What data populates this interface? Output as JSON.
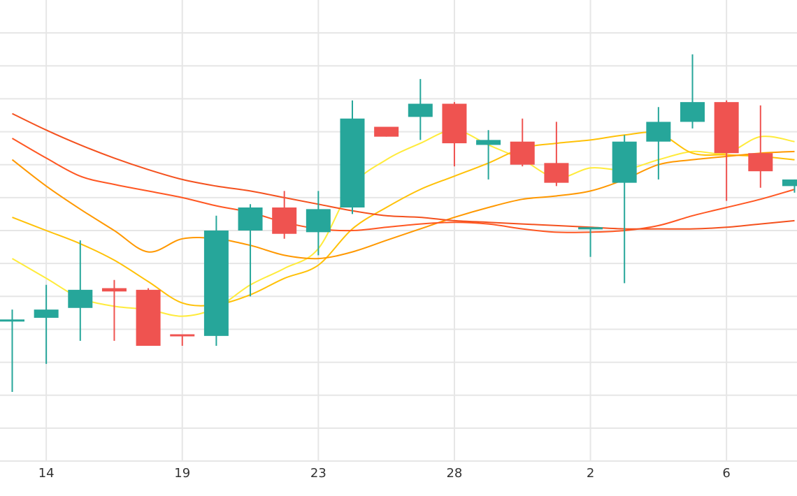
{
  "chart_data": {
    "type": "candlestick",
    "title": "",
    "xlabel": "",
    "ylabel": "",
    "x_tick_labels": [
      "14",
      "19",
      "23",
      "28",
      "2",
      "6"
    ],
    "ylim": [
      0,
      14
    ],
    "y_grid_values": [
      1,
      2,
      3,
      4,
      5,
      6,
      7,
      8,
      9,
      10,
      11,
      12,
      13
    ],
    "grid": true,
    "colors": {
      "up": "#26a69a",
      "down": "#ef5350"
    },
    "candles": [
      {
        "open": 4.3,
        "high": 4.6,
        "low": 2.1,
        "close": 4.3
      },
      {
        "open": 4.35,
        "high": 5.35,
        "low": 2.95,
        "close": 4.6
      },
      {
        "open": 4.65,
        "high": 6.7,
        "low": 3.65,
        "close": 5.2
      },
      {
        "open": 5.25,
        "high": 5.5,
        "low": 3.65,
        "close": 5.15
      },
      {
        "open": 5.2,
        "high": 5.25,
        "low": 3.5,
        "close": 3.5
      },
      {
        "open": 3.85,
        "high": 3.85,
        "low": 3.5,
        "close": 3.8
      },
      {
        "open": 3.8,
        "high": 7.45,
        "low": 3.5,
        "close": 7.0
      },
      {
        "open": 7.0,
        "high": 7.8,
        "low": 5.0,
        "close": 7.7
      },
      {
        "open": 7.7,
        "high": 8.2,
        "low": 6.75,
        "close": 6.9
      },
      {
        "open": 6.95,
        "high": 8.2,
        "low": 6.25,
        "close": 7.65
      },
      {
        "open": 7.7,
        "high": 10.95,
        "low": 7.5,
        "close": 10.4
      },
      {
        "open": 10.15,
        "high": 10.15,
        "low": 9.85,
        "close": 9.85
      },
      {
        "open": 10.45,
        "high": 11.6,
        "low": 9.75,
        "close": 10.85
      },
      {
        "open": 10.85,
        "high": 10.9,
        "low": 8.95,
        "close": 9.65
      },
      {
        "open": 9.6,
        "high": 10.05,
        "low": 8.55,
        "close": 9.75
      },
      {
        "open": 9.7,
        "high": 10.4,
        "low": 8.95,
        "close": 9.0
      },
      {
        "open": 9.05,
        "high": 10.3,
        "low": 8.35,
        "close": 8.45
      },
      {
        "open": 7.1,
        "high": 7.1,
        "low": 6.2,
        "close": 7.1
      },
      {
        "open": 8.45,
        "high": 9.9,
        "low": 5.4,
        "close": 9.7
      },
      {
        "open": 9.7,
        "high": 10.75,
        "low": 8.55,
        "close": 10.3
      },
      {
        "open": 10.3,
        "high": 12.35,
        "low": 10.1,
        "close": 10.9
      },
      {
        "open": 10.9,
        "high": 10.95,
        "low": 7.9,
        "close": 9.35
      },
      {
        "open": 9.35,
        "high": 10.8,
        "low": 8.3,
        "close": 8.8
      },
      {
        "open": 8.35,
        "high": 8.55,
        "low": 8.15,
        "close": 8.55
      }
    ],
    "series": [
      {
        "color": "#ffeb3b",
        "values": [
          6.15,
          5.55,
          4.95,
          4.7,
          4.6,
          4.4,
          4.65,
          5.35,
          5.85,
          6.45,
          8.35,
          9.15,
          9.65,
          10.05,
          9.6,
          9.15,
          8.6,
          8.9,
          8.85,
          9.15,
          9.4,
          9.35,
          9.85,
          9.7
        ]
      },
      {
        "color": "#ffc107",
        "values": [
          7.4,
          7.0,
          6.6,
          6.1,
          5.45,
          4.8,
          4.75,
          5.05,
          5.55,
          5.95,
          7.05,
          7.7,
          8.25,
          8.65,
          9.05,
          9.5,
          9.65,
          9.75,
          9.9,
          9.95,
          9.35,
          9.3,
          9.25,
          9.15
        ]
      },
      {
        "color": "#ff9800",
        "values": [
          9.15,
          8.35,
          7.65,
          7.0,
          6.35,
          6.75,
          6.75,
          6.55,
          6.25,
          6.15,
          6.35,
          6.7,
          7.05,
          7.4,
          7.7,
          7.95,
          8.05,
          8.2,
          8.55,
          9.0,
          9.15,
          9.25,
          9.35,
          9.4
        ]
      },
      {
        "color": "#ff5722",
        "values": [
          9.8,
          9.2,
          8.65,
          8.4,
          8.2,
          8.0,
          7.75,
          7.55,
          7.25,
          7.05,
          7.0,
          7.1,
          7.2,
          7.25,
          7.2,
          7.05,
          6.95,
          6.95,
          7.0,
          7.15,
          7.45,
          7.7,
          7.95,
          8.25
        ]
      },
      {
        "color": "#f4511e",
        "values": [
          10.55,
          10.05,
          9.6,
          9.2,
          8.85,
          8.55,
          8.35,
          8.2,
          8.0,
          7.8,
          7.6,
          7.45,
          7.4,
          7.3,
          7.25,
          7.2,
          7.15,
          7.1,
          7.05,
          7.05,
          7.05,
          7.1,
          7.2,
          7.3
        ]
      }
    ]
  }
}
